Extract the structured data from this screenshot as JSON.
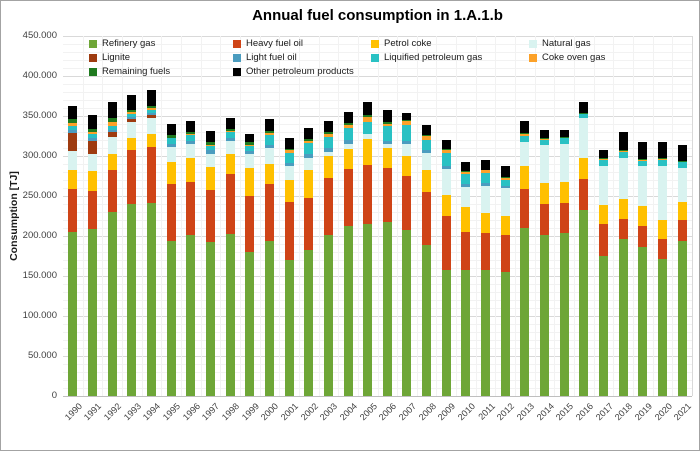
{
  "title": "Annual fuel consumption in 1.A.1.b",
  "y_axis": {
    "label": "Consumption [TJ]",
    "tick_labels": [
      "450.000",
      "400.000",
      "350.000",
      "300.000",
      "250.000",
      "200.000",
      "150.000",
      "100.000",
      "50.000",
      "0"
    ],
    "max": 450000,
    "major_step": 50000,
    "minor_step": 10000
  },
  "x_axis": {
    "tick_labels": [
      "1990",
      "1991",
      "1992",
      "1993",
      "1994",
      "1995",
      "1996",
      "1997",
      "1998",
      "1999",
      "2000",
      "2001",
      "2002",
      "2003",
      "2004",
      "2005",
      "2006",
      "2007",
      "2008",
      "2009",
      "2010",
      "2011",
      "2012",
      "2013",
      "2014",
      "2015",
      "2016",
      "2017",
      "2018",
      "2019",
      "2020",
      "2021"
    ]
  },
  "colors": {
    "grid_major": "#d9d9d9",
    "grid_minor": "#f2f2f2",
    "baseline": "#bfbfbf",
    "plot_right_border": "#d9d9d9"
  },
  "chart_data": {
    "type": "bar",
    "stacked": true,
    "title": "Annual fuel consumption in 1.A.1.b",
    "xlabel": "",
    "ylabel": "Consumption [TJ]",
    "unit": "TJ",
    "ylim": [
      0,
      450000
    ],
    "grid": {
      "major": true,
      "minor": true
    },
    "legend_position": "top-inside",
    "categories": [
      "1990",
      "1991",
      "1992",
      "1993",
      "1994",
      "1995",
      "1996",
      "1997",
      "1998",
      "1999",
      "2000",
      "2001",
      "2002",
      "2003",
      "2004",
      "2005",
      "2006",
      "2007",
      "2008",
      "2009",
      "2010",
      "2011",
      "2012",
      "2013",
      "2014",
      "2015",
      "2016",
      "2017",
      "2018",
      "2019",
      "2020",
      "2021"
    ],
    "series": [
      {
        "name": "Refinery gas",
        "color": "#6EA637",
        "values": [
          205000,
          209000,
          230000,
          240000,
          241000,
          194000,
          201000,
          192000,
          203000,
          180000,
          194000,
          170000,
          182000,
          201000,
          213000,
          215000,
          217000,
          207000,
          189000,
          157000,
          157000,
          157000,
          155000,
          210000,
          201000,
          204000,
          232000,
          175000,
          196000,
          186000,
          171000,
          194000
        ]
      },
      {
        "name": "Heavy fuel oil",
        "color": "#CF4417",
        "values": [
          54000,
          47000,
          52000,
          67000,
          70000,
          71000,
          67000,
          65000,
          74000,
          70000,
          71000,
          72000,
          66000,
          71000,
          71000,
          74000,
          68000,
          68000,
          66000,
          68000,
          48000,
          47000,
          46000,
          49000,
          39000,
          37000,
          39000,
          40000,
          25000,
          26000,
          25000,
          26000
        ]
      },
      {
        "name": "Petrol coke",
        "color": "#FFC000",
        "values": [
          23000,
          25000,
          21000,
          15000,
          17000,
          28000,
          29000,
          29000,
          25000,
          35000,
          25000,
          28000,
          34000,
          28000,
          25000,
          32000,
          25000,
          25000,
          28000,
          26000,
          31000,
          25000,
          24000,
          28000,
          26000,
          26000,
          27000,
          24000,
          25000,
          25000,
          24000,
          22000
        ]
      },
      {
        "name": "Natural gas",
        "color": "#D9F3F0",
        "values": [
          24000,
          22000,
          21000,
          20000,
          20000,
          18000,
          18000,
          17000,
          17000,
          17000,
          20000,
          17000,
          16000,
          5000,
          6000,
          6000,
          5000,
          15000,
          21000,
          33000,
          25000,
          33000,
          35000,
          30000,
          48000,
          48000,
          50000,
          49000,
          52000,
          51000,
          68000,
          43000
        ]
      },
      {
        "name": "Lignite",
        "color": "#9E3B10",
        "values": [
          23000,
          16000,
          6000,
          4000,
          3000,
          0,
          0,
          0,
          0,
          0,
          0,
          0,
          0,
          0,
          0,
          0,
          0,
          0,
          0,
          0,
          0,
          0,
          0,
          0,
          0,
          0,
          0,
          0,
          0,
          0,
          0,
          0
        ]
      },
      {
        "name": "Light fuel oil",
        "color": "#4B9CBF",
        "values": [
          4000,
          3000,
          3000,
          3000,
          3000,
          4000,
          4000,
          4000,
          4000,
          4000,
          4000,
          4000,
          4000,
          5000,
          5000,
          1000,
          4000,
          4000,
          3000,
          3000,
          4000,
          4000,
          3000,
          0,
          0,
          0,
          0,
          0,
          0,
          0,
          0,
          0
        ]
      },
      {
        "name": "Liquified petroleum gas",
        "color": "#29C1C3",
        "values": [
          5000,
          5000,
          5000,
          4000,
          4000,
          7000,
          7000,
          6000,
          7000,
          7000,
          12000,
          13000,
          14000,
          14000,
          15000,
          15000,
          18000,
          20000,
          13000,
          17000,
          12000,
          13000,
          7000,
          8000,
          6000,
          7000,
          4000,
          7000,
          7000,
          6000,
          7000,
          7000
        ]
      },
      {
        "name": "Coke oven gas",
        "color": "#FCA128",
        "values": [
          3000,
          3000,
          4000,
          2000,
          2000,
          1000,
          1000,
          1000,
          1000,
          1000,
          3000,
          3000,
          3000,
          4000,
          4000,
          6000,
          3000,
          5000,
          5000,
          4000,
          3000,
          3000,
          3000,
          2000,
          1000,
          1000,
          1000,
          1000,
          1000,
          1000,
          1000,
          1000
        ]
      },
      {
        "name": "Remaining fuels",
        "color": "#1F7A1F",
        "values": [
          5000,
          4000,
          5000,
          3000,
          3000,
          3000,
          3000,
          3000,
          3000,
          3000,
          2000,
          2000,
          2000,
          2000,
          2000,
          2000,
          2000,
          1000,
          1000,
          1000,
          1000,
          1000,
          1000,
          2000,
          1000,
          1000,
          1000,
          1000,
          1000,
          1000,
          1000,
          1000
        ]
      },
      {
        "name": "Other petroleum products",
        "color": "#000000",
        "values": [
          16000,
          17000,
          21000,
          18000,
          19000,
          14000,
          14000,
          14000,
          14000,
          10000,
          15000,
          13000,
          14000,
          14000,
          14000,
          16000,
          16000,
          9000,
          13000,
          11000,
          12000,
          12000,
          13000,
          15000,
          10000,
          9000,
          13000,
          11000,
          23000,
          21000,
          21000,
          20000
        ]
      }
    ]
  }
}
